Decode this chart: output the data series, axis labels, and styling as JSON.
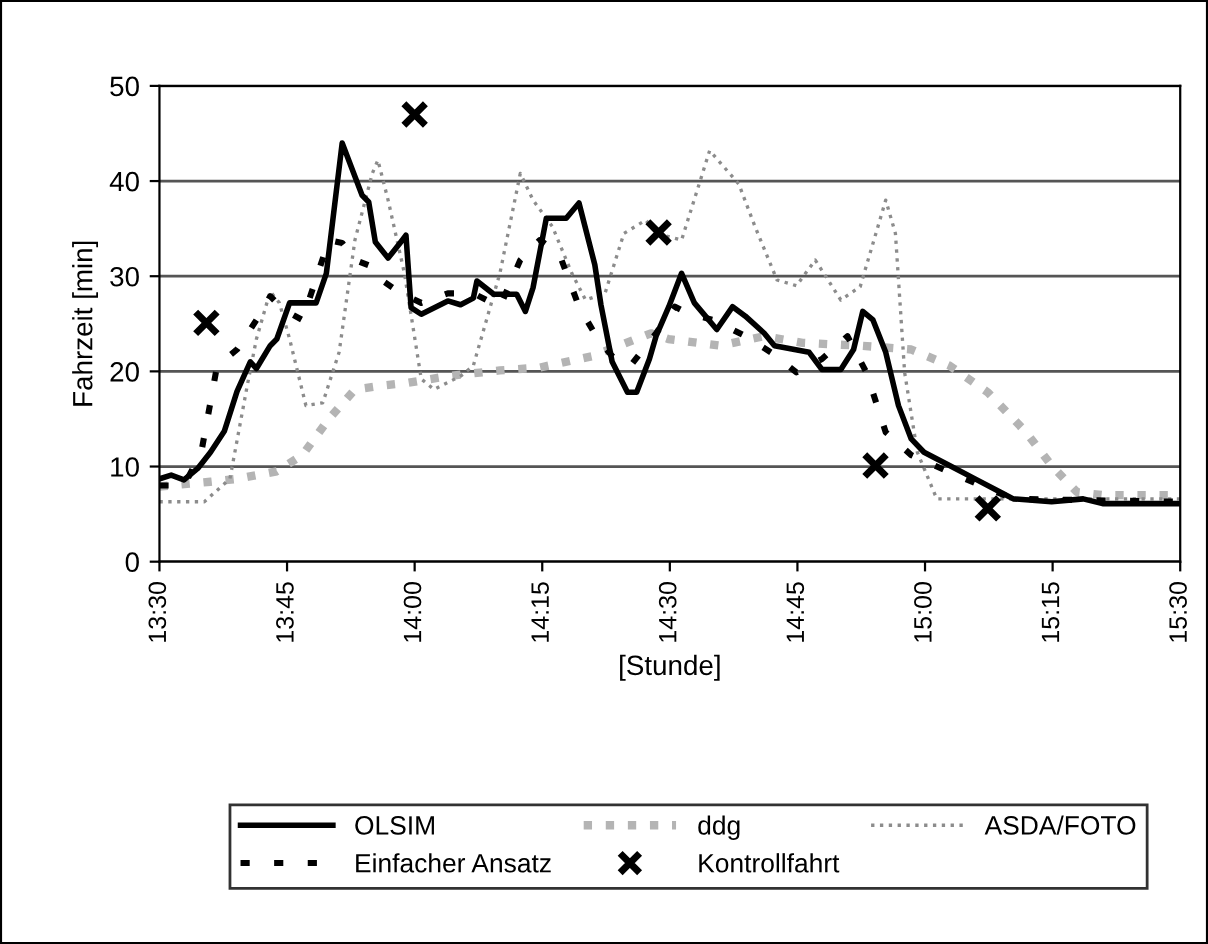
{
  "chart_data": {
    "type": "line",
    "xlabel": "[Stunde]",
    "ylabel": "Fahrzeit [min]",
    "xlim": [
      13.5,
      15.5
    ],
    "xticks": [
      {
        "value": 13.5,
        "label": "13:30"
      },
      {
        "value": 13.75,
        "label": "13:45"
      },
      {
        "value": 14.0,
        "label": "14:00"
      },
      {
        "value": 14.25,
        "label": "14:15"
      },
      {
        "value": 14.5,
        "label": "14:30"
      },
      {
        "value": 14.75,
        "label": "14:45"
      },
      {
        "value": 15.0,
        "label": "15:00"
      },
      {
        "value": 15.25,
        "label": "15:15"
      },
      {
        "value": 15.5,
        "label": "15:30"
      }
    ],
    "ylim": [
      0,
      50
    ],
    "yticks": [
      0,
      10,
      20,
      30,
      40,
      50
    ],
    "grid": "y",
    "legend": "bottom",
    "series": [
      {
        "name": "OLSIM",
        "color": "#000000",
        "line_style": "solid",
        "x": [
          13.5,
          13.523,
          13.548,
          13.575,
          13.6,
          13.627,
          13.652,
          13.678,
          13.69,
          13.717,
          13.73,
          13.755,
          13.807,
          13.827,
          13.858,
          13.897,
          13.91,
          13.923,
          13.948,
          13.973,
          13.983,
          13.993,
          14.013,
          14.065,
          14.09,
          14.115,
          14.122,
          14.155,
          14.2,
          14.217,
          14.232,
          14.258,
          14.297,
          14.322,
          14.353,
          14.365,
          14.387,
          14.417,
          14.435,
          14.46,
          14.473,
          14.498,
          14.523,
          14.548,
          14.592,
          14.623,
          14.648,
          14.685,
          14.705,
          14.773,
          14.798,
          14.835,
          14.86,
          14.878,
          14.898,
          14.923,
          14.948,
          14.973,
          14.998,
          15.048,
          15.098,
          15.148,
          15.173,
          15.248,
          15.31,
          15.348,
          15.5
        ],
        "values": [
          8.7,
          9.1,
          8.6,
          9.8,
          11.5,
          13.7,
          17.9,
          21,
          20.3,
          22.7,
          23.4,
          27.2,
          27.2,
          30.3,
          44,
          38.5,
          37.8,
          33.6,
          31.9,
          33.6,
          34.3,
          26.7,
          26,
          27.4,
          27,
          27.7,
          29.5,
          28.1,
          28.1,
          26.3,
          28.8,
          36.1,
          36.1,
          37.7,
          31.2,
          27,
          21,
          17.8,
          17.8,
          21.3,
          23.7,
          26.8,
          30.3,
          27.2,
          24.4,
          26.8,
          25.8,
          24,
          22.7,
          22,
          20.2,
          20.2,
          22.3,
          26.3,
          25.4,
          22,
          16.4,
          12.9,
          11.5,
          10.1,
          8.7,
          7.3,
          6.6,
          6.3,
          6.6,
          6.1,
          6.1
        ]
      },
      {
        "name": "ddg",
        "color": "#b4b4b4",
        "line_style": "dotted",
        "x": [
          13.5,
          13.6,
          13.652,
          13.73,
          13.78,
          13.832,
          13.883,
          13.935,
          13.987,
          14.065,
          14.167,
          14.245,
          14.348,
          14.463,
          14.497,
          14.598,
          14.685,
          14.76,
          14.873,
          14.973,
          15.048,
          15.123,
          15.198,
          15.248,
          15.298,
          15.348,
          15.5
        ],
        "values": [
          7.9,
          8.4,
          8.7,
          9.5,
          11.2,
          15,
          18.1,
          18.5,
          18.8,
          19.5,
          20.1,
          20.4,
          21.6,
          24,
          23.4,
          22.7,
          23.7,
          23,
          22.7,
          22.3,
          20.6,
          17.8,
          13.6,
          10.1,
          7.3,
          7,
          7
        ]
      },
      {
        "name": "ASDA/FOTO",
        "color": "#8c8c8c",
        "line_style": "dotted",
        "x": [
          13.5,
          13.588,
          13.638,
          13.672,
          13.69,
          13.717,
          13.735,
          13.755,
          13.787,
          13.82,
          13.852,
          13.883,
          13.917,
          13.928,
          13.948,
          13.98,
          14.013,
          14.038,
          14.09,
          14.115,
          14.167,
          14.207,
          14.232,
          14.27,
          14.308,
          14.335,
          14.373,
          14.41,
          14.453,
          14.473,
          14.523,
          14.578,
          14.635,
          14.667,
          14.71,
          14.748,
          14.785,
          14.835,
          14.873,
          14.923,
          14.942,
          14.96,
          14.985,
          15.023,
          15.073,
          15.5
        ],
        "values": [
          6.3,
          6.3,
          8.7,
          18.5,
          23.4,
          28.4,
          27.2,
          23.4,
          16.4,
          16.7,
          22,
          33.8,
          40.8,
          42.2,
          38,
          30.3,
          19.2,
          18.1,
          19.5,
          20.6,
          30.3,
          40.8,
          38,
          35.2,
          30.3,
          27.5,
          28.2,
          34.5,
          35.9,
          34.5,
          33.8,
          43.2,
          39.7,
          35.2,
          29.6,
          29,
          31.7,
          27.5,
          28.9,
          38,
          34.5,
          19.9,
          11.5,
          6.6,
          6.6,
          6.6
        ]
      },
      {
        "name": "Einfacher Ansatz",
        "color": "#000000",
        "line_style": "dashed",
        "x": [
          13.5,
          13.548,
          13.582,
          13.613,
          13.652,
          13.69,
          13.717,
          13.742,
          13.78,
          13.832,
          13.858,
          13.883,
          13.917,
          13.935,
          13.973,
          14.013,
          14.065,
          14.115,
          14.167,
          14.207,
          14.245,
          14.283,
          14.322,
          14.36,
          14.398,
          14.423,
          14.473,
          14.51,
          14.535,
          14.585,
          14.648,
          14.698,
          14.748,
          14.798,
          14.848,
          14.885,
          14.923,
          14.973,
          15.048,
          15.123,
          15.173,
          15.5
        ],
        "values": [
          8,
          8,
          11.5,
          20.6,
          22.3,
          25.4,
          27.9,
          26.5,
          25.4,
          33.8,
          33.5,
          31.7,
          31,
          29.6,
          28.2,
          27.2,
          28.2,
          28.2,
          26.8,
          31.7,
          33.8,
          32.4,
          26.8,
          23.3,
          20.9,
          20.6,
          24,
          26.8,
          26.1,
          25.4,
          23.7,
          22,
          19.9,
          21.3,
          23.7,
          19.9,
          13.6,
          11.2,
          9.4,
          7.7,
          6.6,
          6.3
        ]
      },
      {
        "name": "Kontrollfahrt",
        "type": "scatter",
        "color": "#000000",
        "marker": "cross",
        "x": [
          13.592,
          14.0,
          14.478,
          14.903,
          15.123
        ],
        "values": [
          25.1,
          47,
          34.6,
          10.1,
          5.6
        ]
      }
    ]
  }
}
